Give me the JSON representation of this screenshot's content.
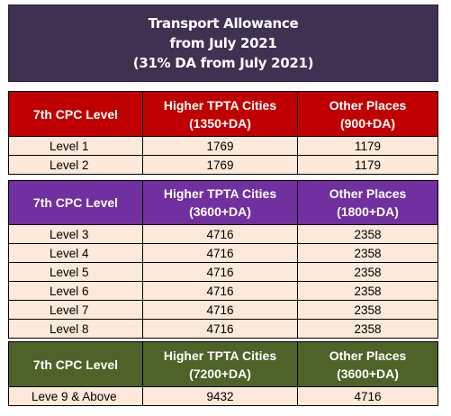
{
  "title": {
    "line1": "Transport Allowance",
    "line2": "from July 2021",
    "line3": "(31% DA from July 2021)"
  },
  "groups": [
    {
      "header": {
        "col1": "7th CPC Level",
        "col2_line1": "Higher TPTA Cities",
        "col2_line2": "(1350+DA)",
        "col3_line1": "Other Places",
        "col3_line2": "(900+DA)"
      },
      "rows": [
        {
          "level": "Level 1",
          "higher": "1769",
          "other": "1179"
        },
        {
          "level": "Level 2",
          "higher": "1769",
          "other": "1179"
        }
      ]
    },
    {
      "header": {
        "col1": "7th CPC Level",
        "col2_line1": "Higher TPTA Cities",
        "col2_line2": "(3600+DA)",
        "col3_line1": "Other Places",
        "col3_line2": "(1800+DA)"
      },
      "rows": [
        {
          "level": "Level 3",
          "higher": "4716",
          "other": "2358"
        },
        {
          "level": "Level 4",
          "higher": "4716",
          "other": "2358"
        },
        {
          "level": "Level 5",
          "higher": "4716",
          "other": "2358"
        },
        {
          "level": "Level 6",
          "higher": "4716",
          "other": "2358"
        },
        {
          "level": "Level 7",
          "higher": "4716",
          "other": "2358"
        },
        {
          "level": "Level 8",
          "higher": "4716",
          "other": "2358"
        }
      ]
    },
    {
      "header": {
        "col1": "7th CPC Level",
        "col2_line1": "Higher TPTA Cities",
        "col2_line2": "(7200+DA)",
        "col3_line1": "Other Places",
        "col3_line2": "(3600+DA)"
      },
      "rows": [
        {
          "level": "Leve 9 & Above",
          "higher": "9432",
          "other": "4716"
        }
      ]
    }
  ],
  "colors": {
    "title_bg": "#3f3151",
    "group1_header": "#c00000",
    "group2_header": "#7030a0",
    "group3_header": "#4f6228",
    "row_bg": "#fde9d9"
  }
}
